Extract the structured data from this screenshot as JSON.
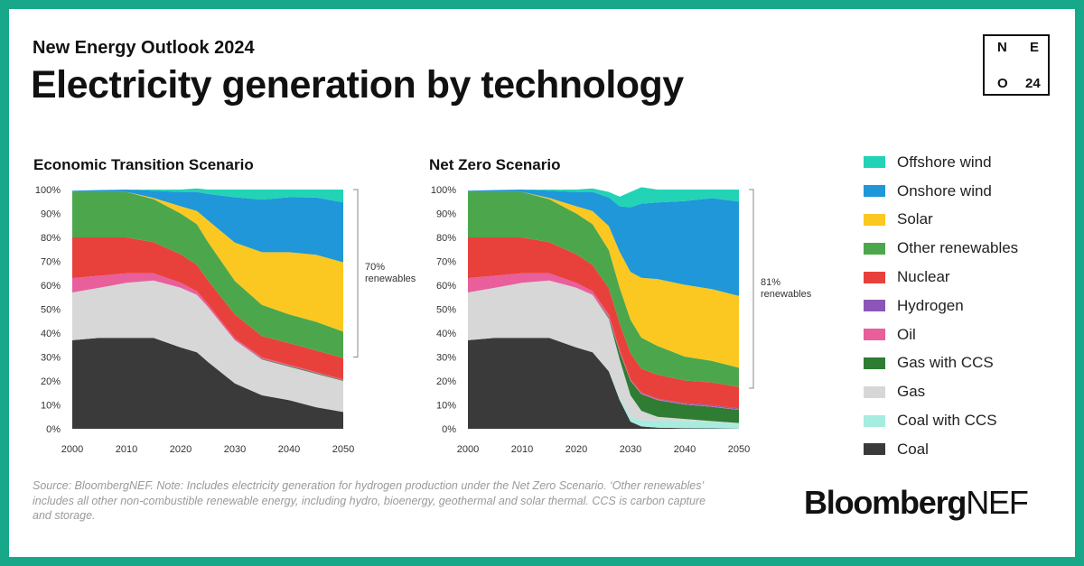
{
  "header": {
    "subtitle": "New Energy Outlook 2024",
    "title": "Electricity generation by technology",
    "badge": {
      "tl": "N",
      "tr": "E",
      "bl": "O",
      "br": "24"
    }
  },
  "legend": [
    {
      "name": "Offshore wind",
      "color": "#22d3b5"
    },
    {
      "name": "Onshore wind",
      "color": "#1f97d8"
    },
    {
      "name": "Solar",
      "color": "#fbc821"
    },
    {
      "name": "Other renewables",
      "color": "#4ca74c"
    },
    {
      "name": "Nuclear",
      "color": "#e8413b"
    },
    {
      "name": "Hydrogen",
      "color": "#8b56b8"
    },
    {
      "name": "Oil",
      "color": "#e85f9c"
    },
    {
      "name": "Gas with CCS",
      "color": "#2e7d32"
    },
    {
      "name": "Gas",
      "color": "#d7d7d7"
    },
    {
      "name": "Coal with CCS",
      "color": "#a6ecdf"
    },
    {
      "name": "Coal",
      "color": "#3a3a3a"
    }
  ],
  "chart_data": [
    {
      "type": "area",
      "stacked": true,
      "title": "Economic Transition Scenario",
      "x": [
        2000,
        2005,
        2010,
        2015,
        2020,
        2023,
        2025,
        2030,
        2035,
        2040,
        2045,
        2050
      ],
      "xticks": [
        2000,
        2010,
        2020,
        2030,
        2040,
        2050
      ],
      "yticks": [
        "0%",
        "10%",
        "20%",
        "30%",
        "40%",
        "50%",
        "60%",
        "70%",
        "80%",
        "90%",
        "100%"
      ],
      "ylim": [
        0,
        100
      ],
      "series": [
        {
          "name": "Coal",
          "values": [
            37,
            38,
            38,
            38,
            34,
            32,
            28,
            19,
            14,
            12,
            9,
            7
          ]
        },
        {
          "name": "Coal with CCS",
          "values": [
            0,
            0,
            0,
            0,
            0,
            0,
            0,
            0,
            0,
            0,
            0,
            0
          ]
        },
        {
          "name": "Gas",
          "values": [
            20,
            21,
            23,
            24,
            25,
            24,
            23,
            18,
            15,
            14,
            14,
            13
          ]
        },
        {
          "name": "Gas with CCS",
          "values": [
            0,
            0,
            0,
            0,
            0,
            0,
            0,
            0,
            0.2,
            0.3,
            0.3,
            0.3
          ]
        },
        {
          "name": "Oil",
          "values": [
            6,
            5,
            4,
            3,
            2,
            1.5,
            1.2,
            0.8,
            0.6,
            0.5,
            0.4,
            0.3
          ]
        },
        {
          "name": "Hydrogen",
          "values": [
            0,
            0,
            0,
            0,
            0,
            0,
            0,
            0,
            0,
            0,
            0,
            0
          ]
        },
        {
          "name": "Nuclear",
          "values": [
            17,
            16,
            15,
            13,
            12,
            11,
            10,
            10,
            9,
            9,
            9,
            9
          ]
        },
        {
          "name": "Other renewables",
          "values": [
            19,
            19,
            19,
            18,
            17,
            17,
            16,
            14,
            13,
            12,
            12,
            11
          ]
        },
        {
          "name": "Solar",
          "values": [
            0,
            0,
            0,
            0.5,
            3,
            5.5,
            9,
            16,
            22,
            26,
            28,
            29
          ]
        },
        {
          "name": "Onshore wind",
          "values": [
            0.5,
            0.8,
            1,
            3,
            6,
            8,
            11,
            19,
            22,
            23,
            24,
            25
          ]
        },
        {
          "name": "Offshore wind",
          "values": [
            0,
            0,
            0,
            0.5,
            1,
            1.5,
            1.8,
            3.2,
            4.2,
            3.2,
            3.3,
            5.4
          ]
        }
      ],
      "annotation": {
        "lines": [
          "70%",
          "renewables"
        ],
        "from": 30,
        "to": 100
      }
    },
    {
      "type": "area",
      "stacked": true,
      "title": "Net Zero Scenario",
      "x": [
        2000,
        2005,
        2010,
        2015,
        2020,
        2023,
        2026,
        2028,
        2030,
        2032,
        2035,
        2040,
        2045,
        2050
      ],
      "xticks": [
        2000,
        2010,
        2020,
        2030,
        2040,
        2050
      ],
      "yticks": [
        "0%",
        "10%",
        "20%",
        "30%",
        "40%",
        "50%",
        "60%",
        "70%",
        "80%",
        "90%",
        "100%"
      ],
      "ylim": [
        0,
        100
      ],
      "series": [
        {
          "name": "Coal",
          "values": [
            37,
            38,
            38,
            38,
            34,
            32,
            24,
            12,
            3,
            1,
            0.5,
            0.3,
            0.2,
            0.1
          ]
        },
        {
          "name": "Coal with CCS",
          "values": [
            0,
            0,
            0,
            0,
            0,
            0,
            0,
            1,
            2,
            2.5,
            3,
            3,
            2.5,
            2
          ]
        },
        {
          "name": "Gas",
          "values": [
            20,
            21,
            23,
            24,
            25,
            24,
            22,
            16,
            9,
            4,
            1.5,
            0.8,
            0.5,
            0.3
          ]
        },
        {
          "name": "Gas with CCS",
          "values": [
            0,
            0,
            0,
            0,
            0,
            0,
            0.5,
            3,
            6,
            7,
            7,
            6,
            6,
            5.5
          ]
        },
        {
          "name": "Oil",
          "values": [
            6,
            5,
            4,
            3,
            2,
            1.5,
            1.2,
            1,
            0.6,
            0.4,
            0.3,
            0.2,
            0.2,
            0.1
          ]
        },
        {
          "name": "Hydrogen",
          "values": [
            0,
            0,
            0,
            0,
            0,
            0,
            0,
            0,
            0,
            0.2,
            0.3,
            0.4,
            0.5,
            0.5
          ]
        },
        {
          "name": "Nuclear",
          "values": [
            17,
            16,
            15,
            13,
            12,
            11,
            11,
            11,
            11,
            10,
            10,
            9.5,
            9.5,
            9
          ]
        },
        {
          "name": "Other renewables",
          "values": [
            19,
            19,
            19,
            18,
            17,
            17,
            16,
            15,
            14,
            13,
            12,
            10,
            9,
            8
          ]
        },
        {
          "name": "Solar",
          "values": [
            0,
            0,
            0,
            0.5,
            3,
            5.5,
            10,
            15,
            20,
            25,
            28,
            30,
            30,
            30
          ]
        },
        {
          "name": "Onshore wind",
          "values": [
            0.5,
            0.8,
            1,
            3,
            6,
            8,
            12,
            19,
            27,
            31,
            32,
            35,
            38,
            39.5
          ]
        },
        {
          "name": "Offshore wind",
          "values": [
            0,
            0,
            0,
            0.5,
            1,
            1.5,
            2.3,
            4,
            6.4,
            6.9,
            5.4,
            4.8,
            3.6,
            5
          ]
        }
      ],
      "annotation": {
        "lines": [
          "81%",
          "renewables"
        ],
        "from": 17,
        "to": 100
      }
    }
  ],
  "footnote": "Source: BloombergNEF. Note: Includes electricity generation for hydrogen production under the Net Zero Scenario. ‘Other renewables’ includes all other non-combustible renewable energy, including hydro, bioenergy, geothermal and solar thermal. CCS is carbon capture and storage.",
  "brand": {
    "bold": "Bloomberg",
    "light": "NEF"
  }
}
